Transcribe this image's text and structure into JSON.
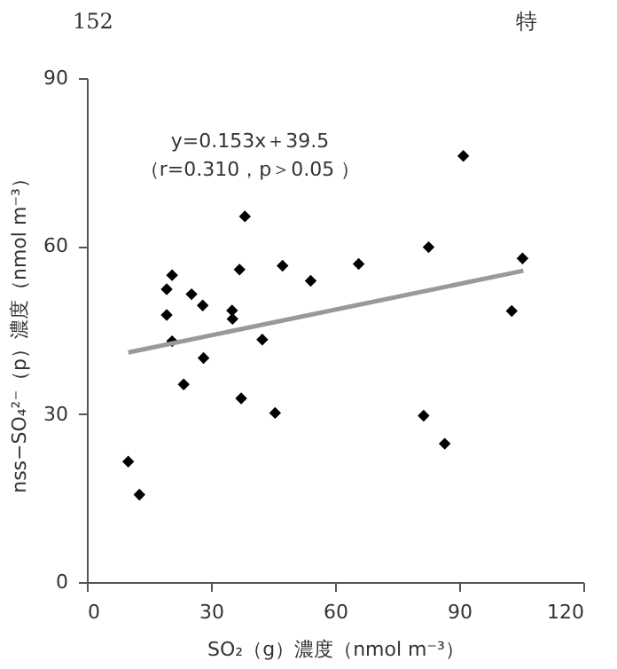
{
  "chart_data": {
    "type": "scatter",
    "xlabel": "SO₂（g）濃度（nmol m⁻³）",
    "ylabel": "nss−SO₄²⁻（p）濃度（nmol m⁻³）",
    "annotations": [
      "152",
      "特",
      "y=0.153x＋39.5",
      "（r=0.310，p＞0.05 ）"
    ],
    "xlim": [
      0,
      120
    ],
    "xticks": [
      0,
      30,
      60,
      90,
      {
        "value": 120,
        "label": "120"
      }
    ],
    "ylim": [
      0,
      90
    ],
    "yticks": [
      0,
      30,
      60,
      90
    ],
    "grid": false,
    "series": [
      {
        "color": "#000000",
        "marker": "diamond",
        "x": [
          10.0,
          12.7,
          19.3,
          19.3,
          20.6,
          20.6,
          23.4,
          25.3,
          28.0,
          28.2,
          35.1,
          35.2,
          36.9,
          38.2,
          37.3,
          42.4,
          45.5,
          47.3,
          54.1,
          65.7,
          81.4,
          82.6,
          86.5,
          91.0,
          102.7,
          105.3
        ],
        "values": [
          21.5,
          15.6,
          52.3,
          47.7,
          54.8,
          43.0,
          35.3,
          51.4,
          49.4,
          40.0,
          48.5,
          47.0,
          55.8,
          65.3,
          32.8,
          43.3,
          30.2,
          56.5,
          53.8,
          56.8,
          29.7,
          59.8,
          24.7,
          76.1,
          48.4,
          57.8
        ]
      },
      {
        "type": "line",
        "color": "#999999",
        "x": [
          10.0,
          105.5
        ],
        "values": [
          41.0,
          55.6
        ],
        "marker": "none",
        "line_style": "solid"
      }
    ]
  }
}
